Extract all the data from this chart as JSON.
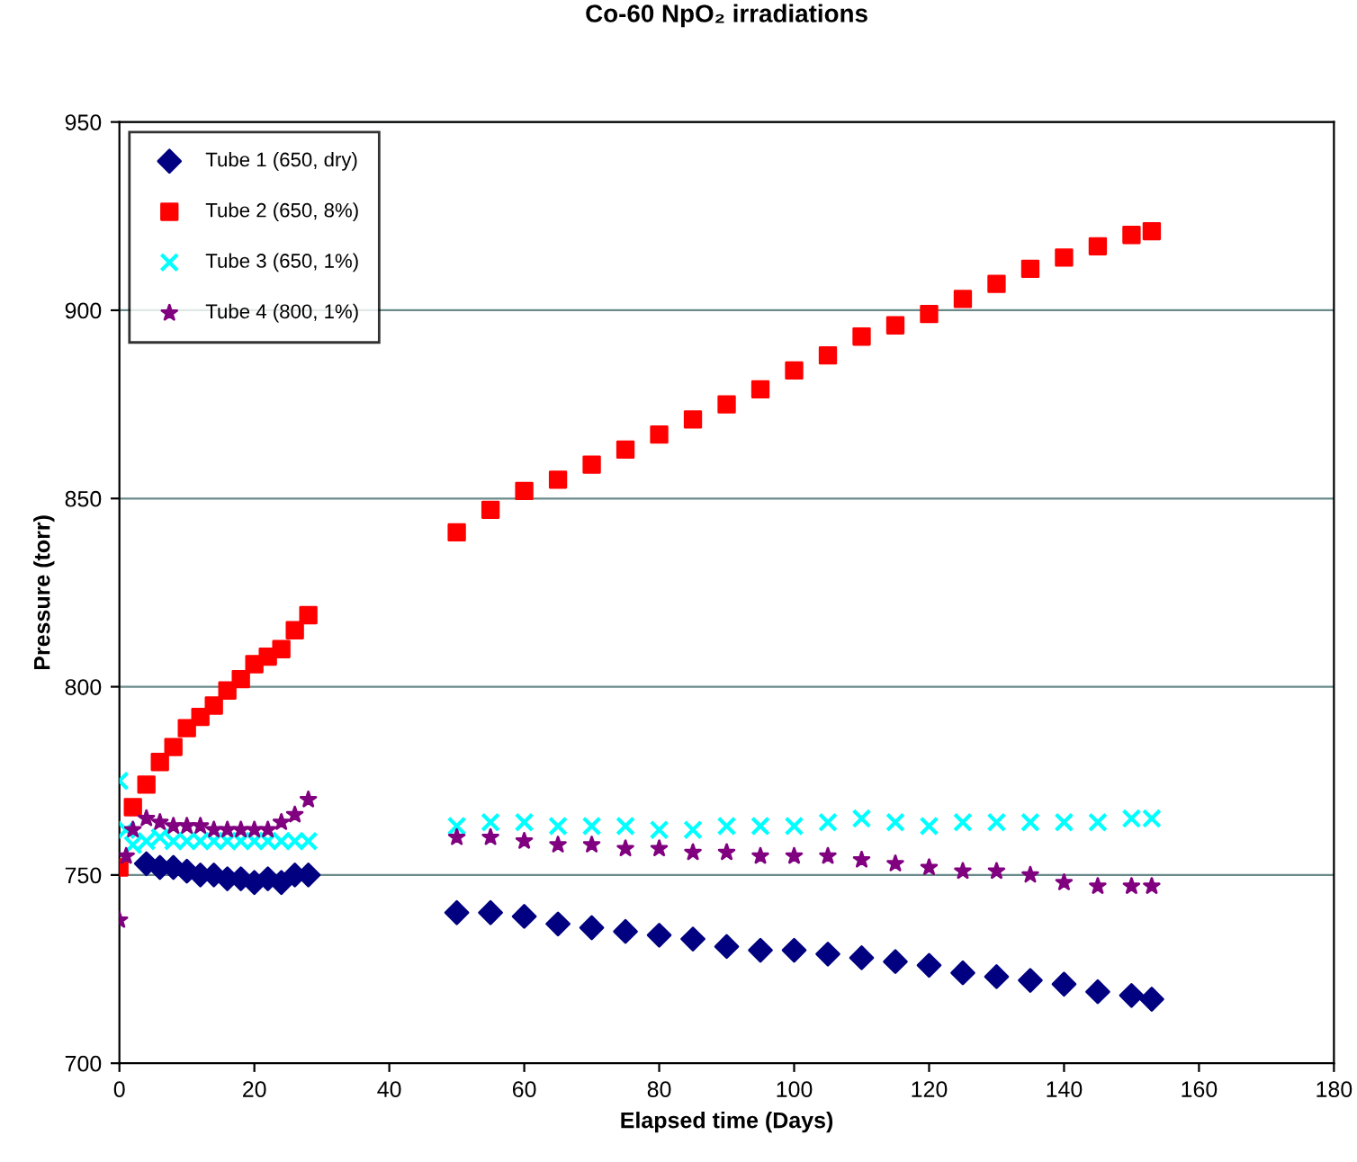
{
  "chart_data": {
    "type": "scatter",
    "title": "Co-60 NpO₂ irradiations",
    "xlabel": "Elapsed time (Days)",
    "ylabel": "Pressure (torr)",
    "xlim": [
      0,
      180
    ],
    "xticks": [
      0,
      20,
      40,
      60,
      80,
      100,
      120,
      140,
      160,
      180
    ],
    "ylim": [
      700,
      950
    ],
    "yticks": [
      700,
      750,
      800,
      850,
      900,
      950
    ],
    "grid": "y",
    "legend": "top left",
    "x": [
      0,
      1,
      2,
      4,
      6,
      8,
      10,
      12,
      14,
      16,
      18,
      20,
      22,
      24,
      26,
      28,
      50,
      55,
      60,
      65,
      70,
      75,
      80,
      85,
      90,
      95,
      100,
      105,
      110,
      115,
      120,
      125,
      130,
      135,
      140,
      145,
      150,
      153
    ],
    "series": [
      {
        "name": "Tube 1 (650, dry)",
        "color": "#000080",
        "marker": "diamond",
        "values": [
          null,
          null,
          null,
          753,
          752,
          752,
          751,
          750,
          750,
          749,
          749,
          748,
          749,
          748,
          750,
          750,
          740,
          740,
          739,
          737,
          736,
          735,
          734,
          733,
          731,
          730,
          730,
          729,
          728,
          727,
          726,
          724,
          723,
          722,
          721,
          719,
          718,
          717
        ]
      },
      {
        "name": "Tube 2 (650, 8%)",
        "color": "#ff0000",
        "marker": "square",
        "values": [
          752,
          null,
          768,
          774,
          780,
          784,
          789,
          792,
          795,
          799,
          802,
          806,
          808,
          810,
          815,
          819,
          841,
          847,
          852,
          855,
          859,
          863,
          867,
          871,
          875,
          879,
          884,
          888,
          893,
          896,
          899,
          903,
          907,
          911,
          914,
          917,
          920,
          921
        ]
      },
      {
        "name": "Tube 3 (650, 1%)",
        "color": "#00ffff",
        "marker": "cross",
        "values": [
          775,
          762,
          758,
          759,
          760,
          759,
          759,
          759,
          759,
          759,
          759,
          759,
          759,
          759,
          759,
          759,
          763,
          764,
          764,
          763,
          763,
          763,
          762,
          762,
          763,
          763,
          763,
          764,
          765,
          764,
          763,
          764,
          764,
          764,
          764,
          764,
          765,
          765
        ]
      },
      {
        "name": "Tube 4 (800, 1%)",
        "color": "#800080",
        "marker": "star",
        "values": [
          738,
          755,
          762,
          765,
          764,
          763,
          763,
          763,
          762,
          762,
          762,
          762,
          762,
          764,
          766,
          770,
          760,
          760,
          759,
          758,
          758,
          757,
          757,
          756,
          756,
          755,
          755,
          755,
          754,
          753,
          752,
          751,
          751,
          750,
          748,
          747,
          747,
          747
        ]
      }
    ]
  }
}
